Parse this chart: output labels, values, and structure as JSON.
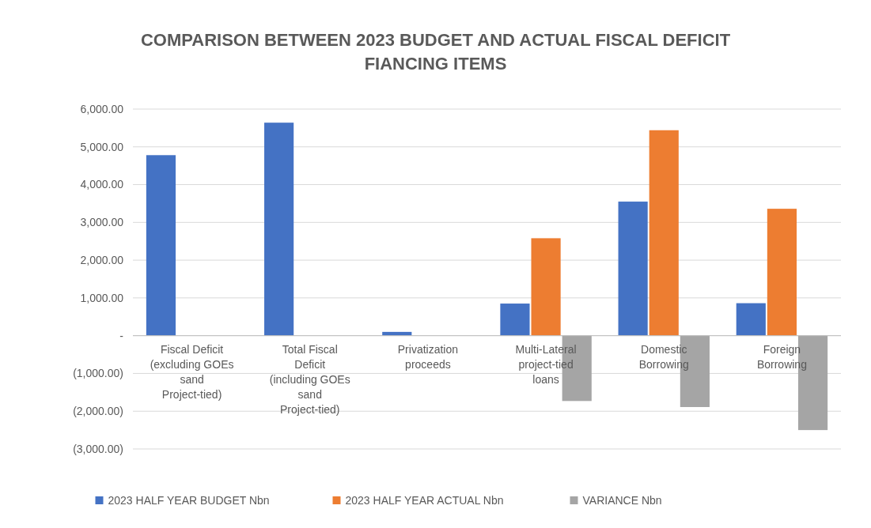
{
  "chart_data": {
    "type": "bar",
    "title": "COMPARISON BETWEEN 2023 BUDGET AND ACTUAL FISCAL DEFICIT FIANCING ITEMS",
    "categories": [
      "Fiscal Deficit (excluding GOEs sand Project-tied)",
      "Total Fiscal Deficit (including GOEs sand Project-tied)",
      "Privatization proceeds",
      "Multi-Lateral project-tied loans",
      "Domestic Borrowing",
      "Foreign Borrowing"
    ],
    "series": [
      {
        "name": "2023 HALF YEAR BUDGET Nbn",
        "color": "#4472c4",
        "values": [
          4780,
          5640,
          100,
          850,
          3550,
          860
        ]
      },
      {
        "name": "2023 HALF YEAR ACTUAL Nbn",
        "color": "#ed7d31",
        "values": [
          null,
          null,
          null,
          2580,
          5440,
          3360
        ]
      },
      {
        "name": "VARIANCE Nbn",
        "color": "#a5a5a5",
        "values": [
          null,
          null,
          null,
          -1730,
          -1890,
          -2500
        ]
      }
    ],
    "ylim": [
      -3000,
      6000
    ],
    "yticks": [
      {
        "value": -3000,
        "label": "(3,000.00)"
      },
      {
        "value": -2000,
        "label": "(2,000.00)"
      },
      {
        "value": -1000,
        "label": "(1,000.00)"
      },
      {
        "value": 0,
        "label": "-"
      },
      {
        "value": 1000,
        "label": "1,000.00"
      },
      {
        "value": 2000,
        "label": "2,000.00"
      },
      {
        "value": 3000,
        "label": "3,000.00"
      },
      {
        "value": 4000,
        "label": "4,000.00"
      },
      {
        "value": 5000,
        "label": "5,000.00"
      },
      {
        "value": 6000,
        "label": "6,000.00"
      }
    ],
    "grid": "y",
    "legend": "bottom"
  }
}
